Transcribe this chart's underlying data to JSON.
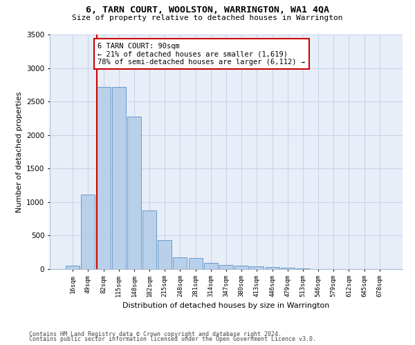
{
  "title": "6, TARN COURT, WOOLSTON, WARRINGTON, WA1 4QA",
  "subtitle": "Size of property relative to detached houses in Warrington",
  "xlabel": "Distribution of detached houses by size in Warrington",
  "ylabel": "Number of detached properties",
  "bar_labels": [
    "16sqm",
    "49sqm",
    "82sqm",
    "115sqm",
    "148sqm",
    "182sqm",
    "215sqm",
    "248sqm",
    "281sqm",
    "314sqm",
    "347sqm",
    "380sqm",
    "413sqm",
    "446sqm",
    "479sqm",
    "513sqm",
    "546sqm",
    "579sqm",
    "612sqm",
    "645sqm",
    "678sqm"
  ],
  "bar_values": [
    55,
    1110,
    2720,
    2720,
    2280,
    870,
    430,
    170,
    160,
    90,
    60,
    55,
    45,
    30,
    20,
    10,
    0,
    0,
    0,
    0,
    0
  ],
  "bar_color": "#b8d0ea",
  "bar_edge_color": "#6699cc",
  "vline_color": "#cc0000",
  "annotation_text": "6 TARN COURT: 90sqm\n← 21% of detached houses are smaller (1,619)\n78% of semi-detached houses are larger (6,112) →",
  "annotation_box_color": "#ffffff",
  "annotation_box_edge": "#cc0000",
  "ylim": [
    0,
    3500
  ],
  "yticks": [
    0,
    500,
    1000,
    1500,
    2000,
    2500,
    3000,
    3500
  ],
  "grid_color": "#c8d4e8",
  "bg_color": "#e8eef8",
  "footer1": "Contains HM Land Registry data © Crown copyright and database right 2024.",
  "footer2": "Contains public sector information licensed under the Open Government Licence v3.0."
}
